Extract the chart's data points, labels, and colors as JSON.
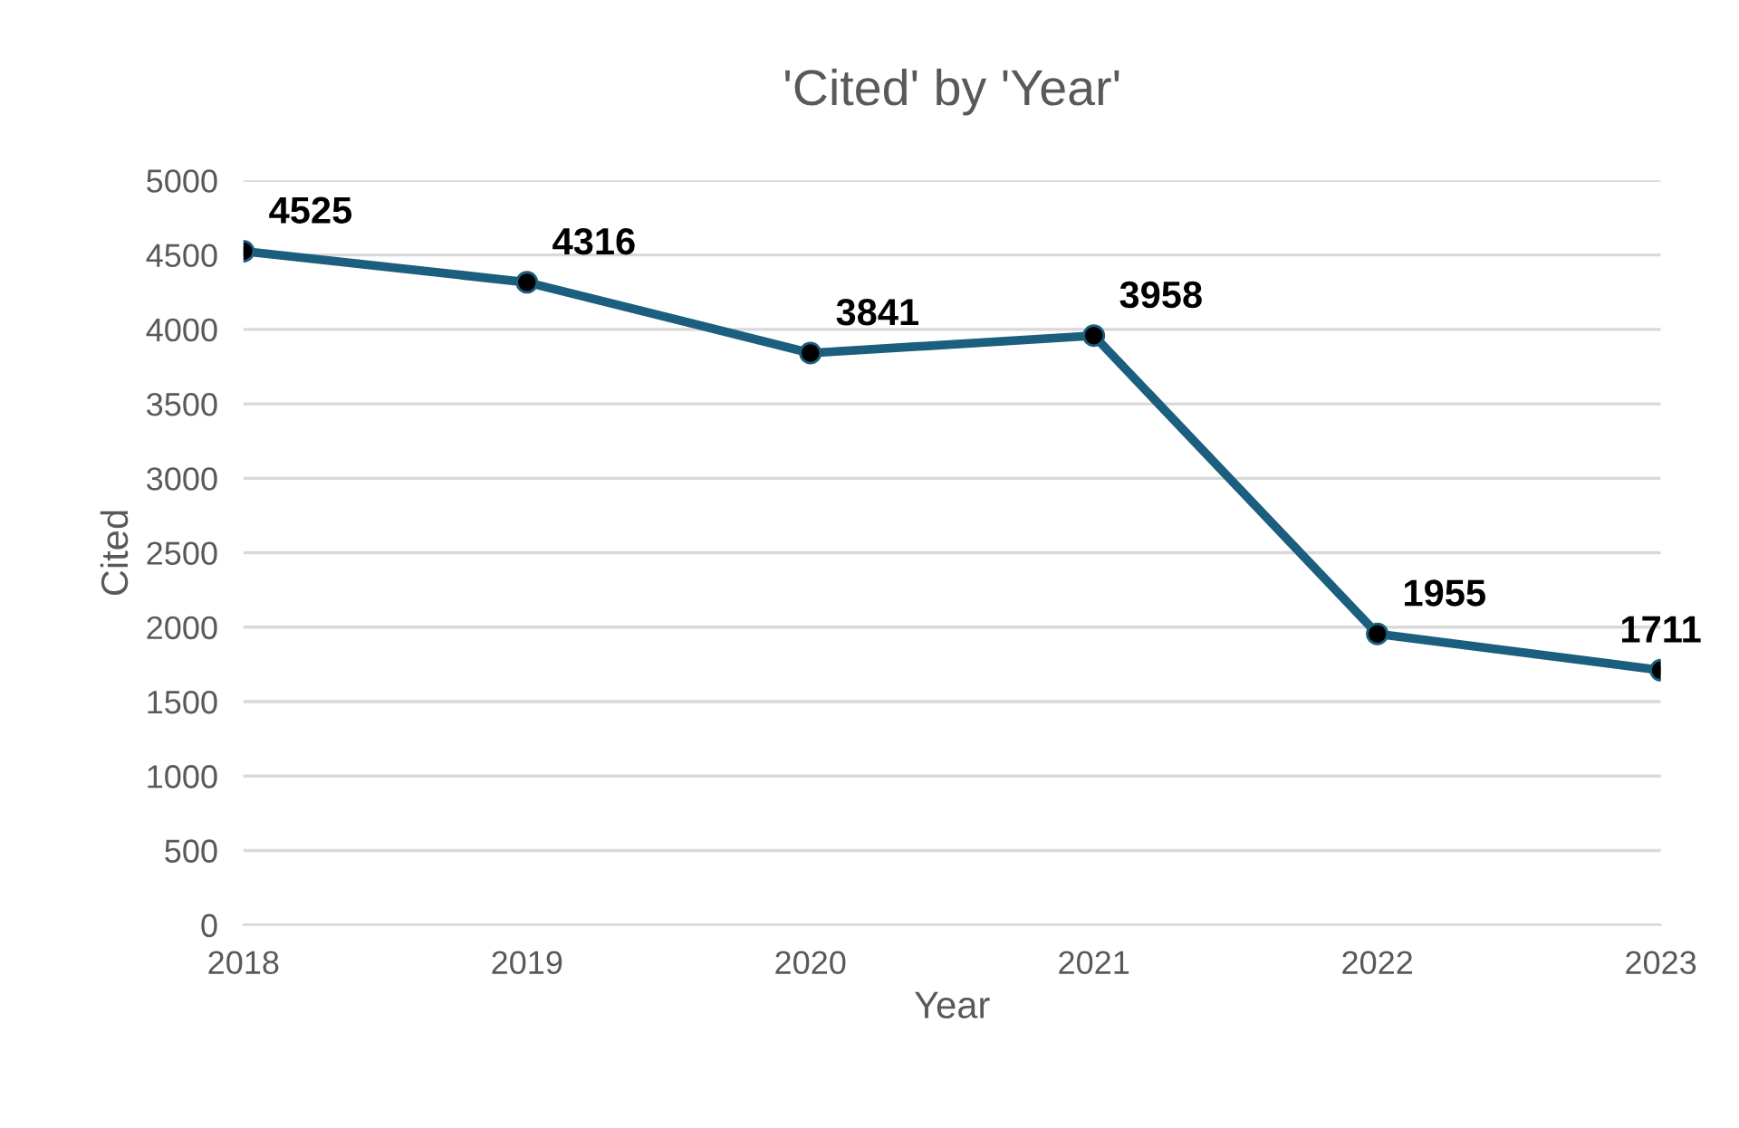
{
  "chart_data": {
    "type": "line",
    "title": "'Cited' by 'Year'",
    "xlabel": "Year",
    "ylabel": "Cited",
    "categories": [
      "2018",
      "2019",
      "2020",
      "2021",
      "2022",
      "2023"
    ],
    "series": [
      {
        "color": "#1b5e7e",
        "values": [
          4525,
          4316,
          3841,
          3958,
          1955,
          1711
        ]
      }
    ],
    "ylim": [
      0,
      5000
    ],
    "yticks": [
      0,
      500,
      1000,
      1500,
      2000,
      2500,
      3000,
      3500,
      4000,
      4500,
      5000
    ],
    "grid": "y",
    "marker": "circle",
    "line_style": "solid",
    "data_labels": true
  }
}
